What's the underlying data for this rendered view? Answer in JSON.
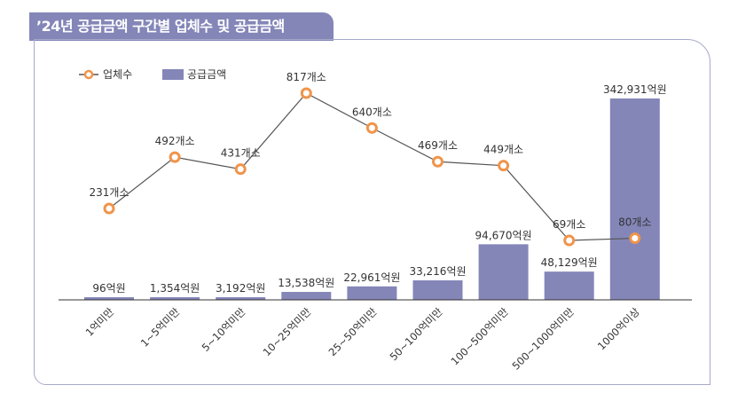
{
  "title": "’24년 공급금액 구간별 업체수 및 공급금액",
  "chart_data": {
    "type": "bar",
    "title": "’24년 공급금액 구간별 업체수 및 공급금액",
    "legend_position": "top-left",
    "categories": [
      "1억미만",
      "1~5억미만",
      "5~10억미만",
      "10~25억미만",
      "25~50억미만",
      "50~100억미만",
      "100~500억미만",
      "500~1000억미만",
      "1000억이상"
    ],
    "series": [
      {
        "name": "업체수",
        "type": "line",
        "color": "#f0944a",
        "values": [
          231,
          492,
          431,
          817,
          640,
          469,
          449,
          69,
          80
        ],
        "labels": [
          "231개소",
          "492개소",
          "431개소",
          "817개소",
          "640개소",
          "469개소",
          "449개소",
          "69개소",
          "80개소"
        ]
      },
      {
        "name": "공급금액",
        "type": "bar",
        "color": "#8486b8",
        "values": [
          96,
          1354,
          3192,
          13538,
          22961,
          33216,
          94670,
          48129,
          342931
        ],
        "labels": [
          "96억원",
          "1,354억원",
          "3,192억원",
          "13,538억원",
          "22,961억원",
          "33,216억원",
          "94,670억원",
          "48,129억원",
          "342,931억원"
        ]
      }
    ]
  }
}
